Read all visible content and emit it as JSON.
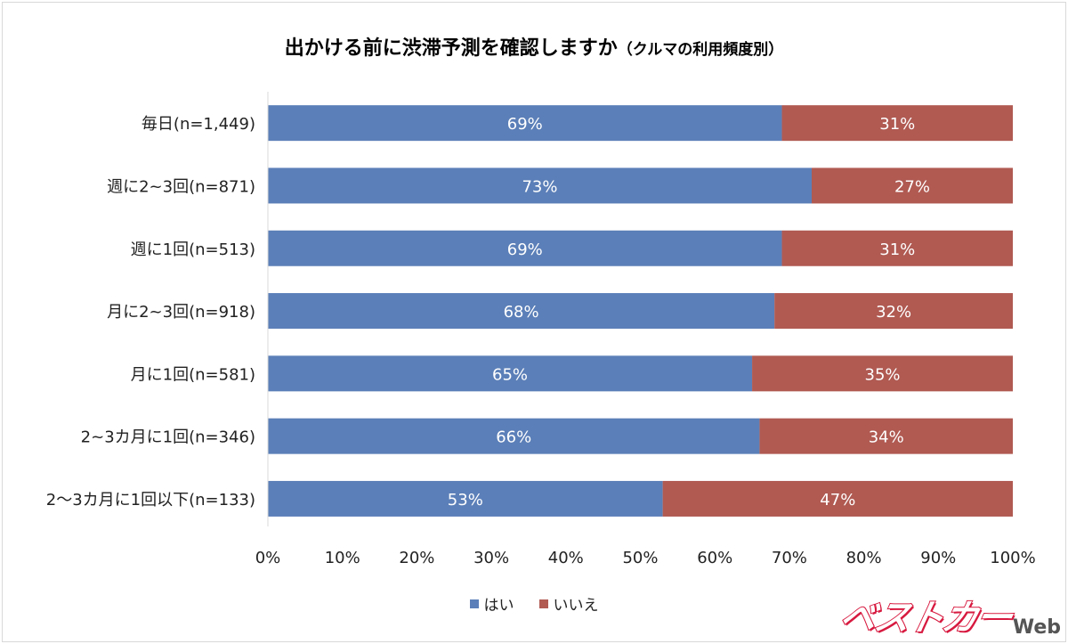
{
  "chart_data": {
    "type": "bar",
    "orientation": "horizontal",
    "stacked": "percent",
    "title": "出かける前に渋滞予測を確認しますか",
    "subtitle": "（クルマの利用頻度別）",
    "categories": [
      "毎日(n=1,449)",
      "週に2~3回(n=871)",
      "週に1回(n=513)",
      "月に2~3回(n=918)",
      "月に1回(n=581)",
      "2~3カ月に1回(n=346)",
      "2～3カ月に1回以下(n=133)"
    ],
    "series": [
      {
        "name": "はい",
        "color": "#5b7fb8",
        "values": [
          69,
          73,
          69,
          68,
          65,
          66,
          53
        ],
        "labels": [
          "69%",
          "73%",
          "69%",
          "68%",
          "65%",
          "66%",
          "53%"
        ]
      },
      {
        "name": "いいえ",
        "color": "#b05a52",
        "values": [
          31,
          27,
          31,
          32,
          35,
          34,
          47
        ],
        "labels": [
          "31%",
          "27%",
          "31%",
          "32%",
          "35%",
          "34%",
          "47%"
        ]
      }
    ],
    "xticks": [
      "0%",
      "10%",
      "20%",
      "30%",
      "40%",
      "50%",
      "60%",
      "70%",
      "80%",
      "90%",
      "100%"
    ],
    "xlim": [
      0,
      100
    ],
    "legend": "bottom",
    "grid": false
  },
  "watermark": {
    "logo": "ベストカー",
    "suffix": "Web"
  }
}
